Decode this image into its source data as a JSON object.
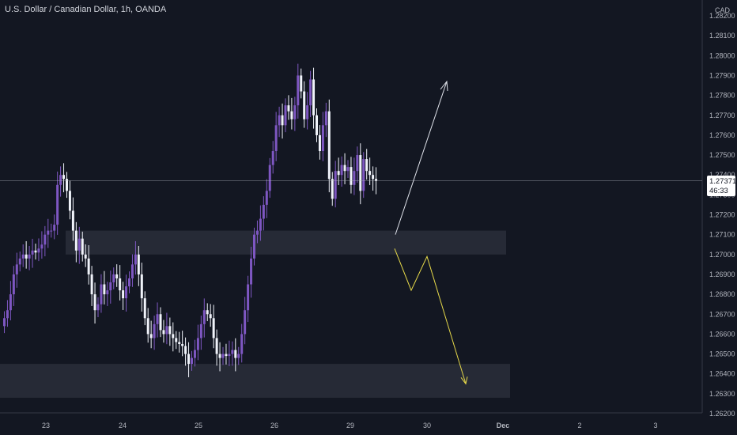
{
  "header": {
    "symbol_title": "U.S. Dollar / Canadian Dollar, 1h, OANDA",
    "currency": "CAD"
  },
  "price_label": {
    "price": "1.27371",
    "countdown": "46:33"
  },
  "colors": {
    "background": "#131722",
    "bull_candle": "#7e57c2",
    "bear_candle": "#f0f3fa",
    "zone": "#2a2e39",
    "up_arrow": "#e0e3eb",
    "down_arrow": "#e6d94a",
    "axis_text": "#b2b5be"
  },
  "chart_data": {
    "type": "candlestick",
    "y_axis": {
      "ticks": [
        "1.28200",
        "1.28100",
        "1.28000",
        "1.27900",
        "1.27800",
        "1.27700",
        "1.27600",
        "1.27500",
        "1.27400",
        "1.27300",
        "1.27200",
        "1.27100",
        "1.27000",
        "1.26900",
        "1.26800",
        "1.26700",
        "1.26600",
        "1.26500",
        "1.26400",
        "1.26300",
        "1.26200"
      ],
      "range": [
        1.262,
        1.282
      ]
    },
    "x_axis": {
      "ticks": [
        "23",
        "24",
        "25",
        "26",
        "29",
        "30",
        "Dec",
        "2",
        "3"
      ]
    },
    "last_price": 1.27371,
    "zones": [
      {
        "low": 1.27,
        "high": 1.2712
      },
      {
        "low": 1.2628,
        "high": 1.2645
      }
    ],
    "close_series_approx": [
      1.2668,
      1.2672,
      1.268,
      1.269,
      1.2695,
      1.2698,
      1.27,
      1.2698,
      1.27,
      1.2702,
      1.2701,
      1.2703,
      1.2705,
      1.271,
      1.2712,
      1.2712,
      1.2715,
      1.2735,
      1.274,
      1.2738,
      1.2732,
      1.2722,
      1.2712,
      1.2702,
      1.2708,
      1.27,
      1.2698,
      1.269,
      1.268,
      1.2672,
      1.2675,
      1.2685,
      1.268,
      1.2682,
      1.2686,
      1.269,
      1.2688,
      1.2682,
      1.2678,
      1.2684,
      1.2688,
      1.2695,
      1.27,
      1.269,
      1.2678,
      1.2668,
      1.266,
      1.2658,
      1.2665,
      1.267,
      1.2662,
      1.266,
      1.2664,
      1.266,
      1.2658,
      1.2656,
      1.2655,
      1.2654,
      1.265,
      1.2645,
      1.2648,
      1.2652,
      1.2658,
      1.2665,
      1.2672,
      1.267,
      1.2668,
      1.2658,
      1.265,
      1.2648,
      1.265,
      1.2649,
      1.265,
      1.2652,
      1.2648,
      1.265,
      1.266,
      1.2672,
      1.2685,
      1.2698,
      1.271,
      1.2712,
      1.2718,
      1.2725,
      1.2732,
      1.2745,
      1.2752,
      1.2765,
      1.277,
      1.2765,
      1.2775,
      1.2772,
      1.2768,
      1.2775,
      1.279,
      1.2782,
      1.2768,
      1.2775,
      1.2788,
      1.277,
      1.276,
      1.2752,
      1.2765,
      1.2772,
      1.2738,
      1.2728,
      1.2742,
      1.274,
      1.2745,
      1.2742,
      1.2744,
      1.2735,
      1.2742,
      1.275,
      1.2732,
      1.2748,
      1.2742,
      1.274,
      1.2738,
      1.2737
    ],
    "projections": [
      {
        "name": "",
        "points": [
          [
            1.271,
            "29"
          ],
          [
            1.2787,
            "30"
          ]
        ]
      },
      {
        "name": "",
        "points": [
          [
            1.2703,
            "29"
          ],
          [
            1.2682,
            "30"
          ],
          [
            1.2699,
            "30"
          ],
          [
            1.2635,
            "Dec"
          ]
        ]
      }
    ]
  }
}
